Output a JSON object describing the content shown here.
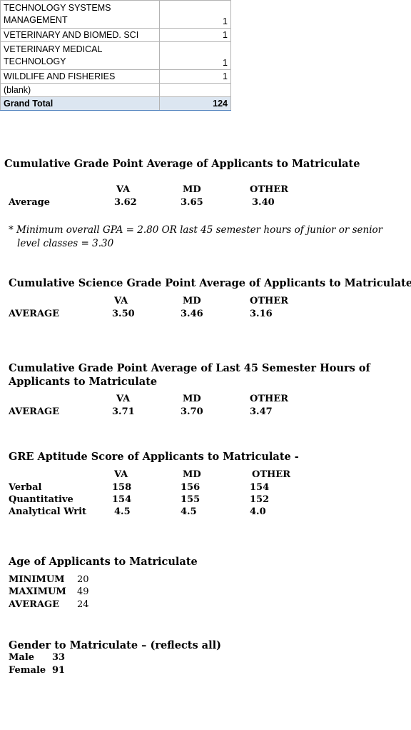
{
  "table": {
    "rows": [
      {
        "label": "TECHNOLOGY SYSTEMS MANAGEMENT",
        "value": "1"
      },
      {
        "label": "VETERINARY AND BIOMED. SCI",
        "value": "1"
      },
      {
        "label": "VETERINARY MEDICAL TECHNOLOGY",
        "value": "1"
      },
      {
        "label": "WILDLIFE AND FISHERIES",
        "value": "1"
      },
      {
        "label": "(blank)",
        "value": ""
      }
    ],
    "total_label": "Grand Total",
    "total_value": "124"
  },
  "cols": {
    "va": "VA",
    "md": "MD",
    "other": "OTHER"
  },
  "gpa": {
    "title": "Cumulative Grade Point Average of Applicants to Matriculate",
    "row_label": "Average",
    "va": "3.62",
    "md": "3.65",
    "other": "3.40",
    "note": "* Minimum overall GPA = 2.80 OR last 45 semester hours of junior or senior level classes = 3.30"
  },
  "sci": {
    "title": "Cumulative Science Grade Point Average of Applicants to Matriculate",
    "row_label": "AVERAGE",
    "va": "3.50",
    "md": "3.46",
    "other": "3.16"
  },
  "last45": {
    "title": "Cumulative Grade Point Average of Last 45 Semester Hours of Applicants to Matriculate",
    "row_label": "AVERAGE",
    "va": "3.71",
    "md": "3.70",
    "other": "3.47"
  },
  "gre": {
    "title": "GRE Aptitude Score of Applicants to Matriculate -",
    "rows": [
      {
        "label": "Verbal",
        "va": "158",
        "md": "156",
        "other": "154"
      },
      {
        "label": "Quantitative",
        "va": "154",
        "md": "155",
        "other": "152"
      },
      {
        "label": "Analytical Writ",
        "va": "4.5",
        "md": "4.5",
        "other": "4.0"
      }
    ]
  },
  "age": {
    "title": "Age of Applicants to Matriculate",
    "rows": [
      {
        "label": "MINIMUM",
        "value": "20"
      },
      {
        "label": "MAXIMUM",
        "value": "49"
      },
      {
        "label": "AVERAGE",
        "value": "24"
      }
    ]
  },
  "gender": {
    "title": "Gender to Matriculate – (reflects all)",
    "rows": [
      {
        "label": "Male",
        "value": "33"
      },
      {
        "label": "Female",
        "value": "91"
      }
    ]
  }
}
